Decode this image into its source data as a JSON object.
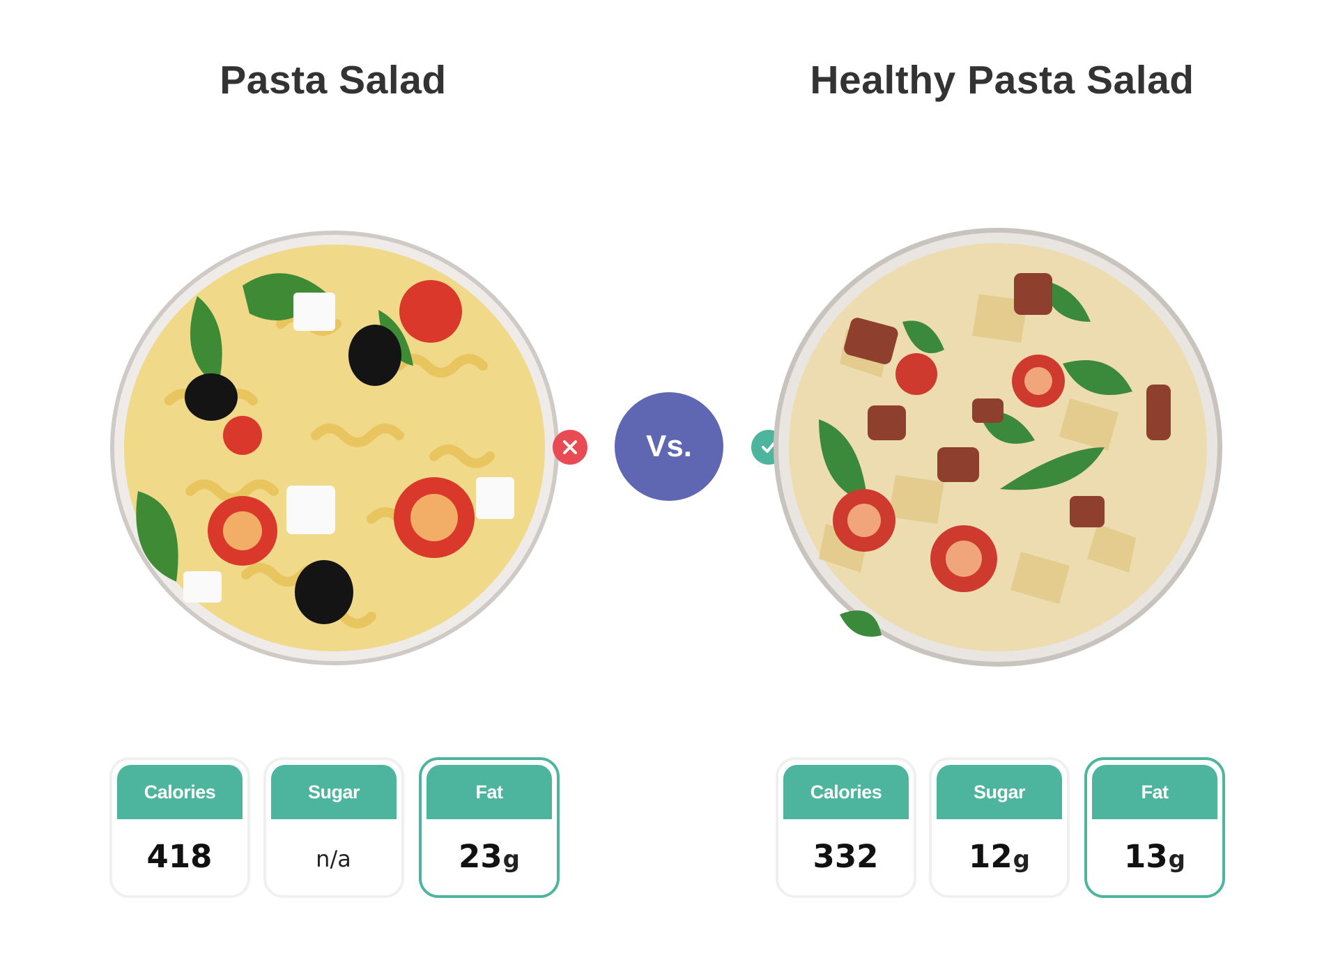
{
  "left": {
    "title": "Pasta Salad",
    "status_icon": "close-icon",
    "nutrients": [
      {
        "label": "Calories",
        "value": "418",
        "unit": ""
      },
      {
        "label": "Sugar",
        "value": "n/a",
        "unit": ""
      },
      {
        "label": "Fat",
        "value": "23",
        "unit": "g"
      }
    ]
  },
  "vs_label": "Vs.",
  "right": {
    "title": "Healthy Pasta Salad",
    "status_icon": "check-icon",
    "nutrients": [
      {
        "label": "Calories",
        "value": "332",
        "unit": ""
      },
      {
        "label": "Sugar",
        "value": "12",
        "unit": "g"
      },
      {
        "label": "Fat",
        "value": "13",
        "unit": "g"
      }
    ]
  },
  "colors": {
    "accent_green": "#4db59e",
    "cross_red": "#e94b55",
    "vs_purple": "#5f67b3",
    "title_text": "#333333"
  }
}
